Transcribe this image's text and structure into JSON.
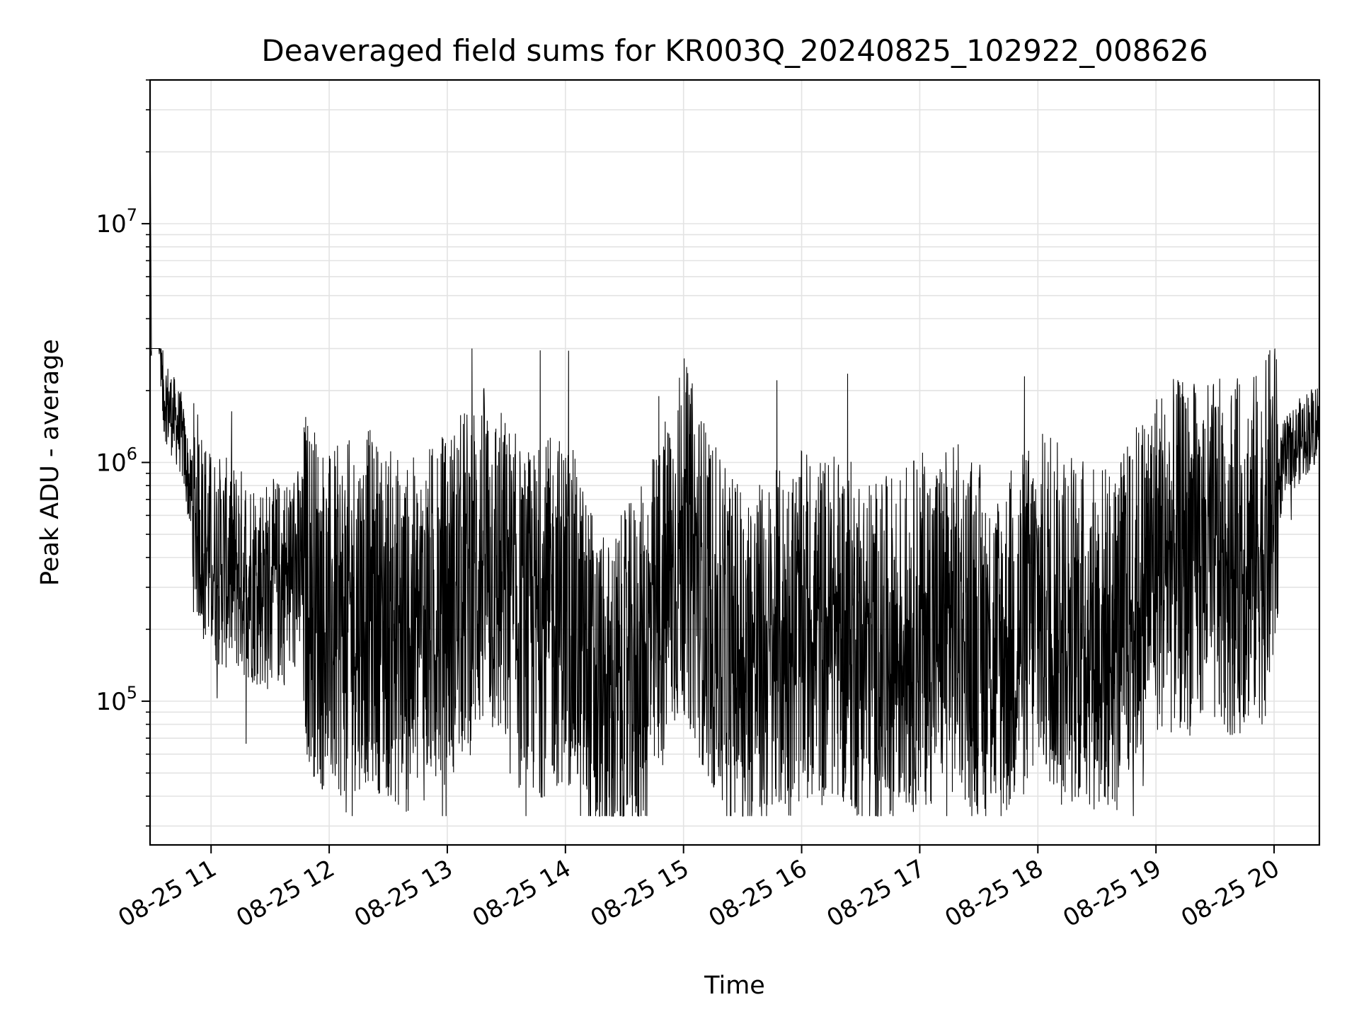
{
  "chart_data": {
    "type": "line",
    "title": "Deaveraged field sums for KR003Q_20240825_102922_008626",
    "xlabel": "Time",
    "ylabel": "Peak ADU - average",
    "yscale": "log",
    "ylim": [
      25000,
      40000000
    ],
    "xlim": [
      "2024-08-25 10:29",
      "2024-08-25 20:23"
    ],
    "grid": true,
    "x_tick_labels": [
      "08-25 11",
      "08-25 12",
      "08-25 13",
      "08-25 14",
      "08-25 15",
      "08-25 16",
      "08-25 17",
      "08-25 18",
      "08-25 19",
      "08-25 20"
    ],
    "x_tick_times": [
      "2024-08-25 11:00",
      "2024-08-25 12:00",
      "2024-08-25 13:00",
      "2024-08-25 14:00",
      "2024-08-25 15:00",
      "2024-08-25 16:00",
      "2024-08-25 17:00",
      "2024-08-25 18:00",
      "2024-08-25 19:00",
      "2024-08-25 20:00"
    ],
    "y_ticks": [
      {
        "value": 100000,
        "base": "10",
        "exp": "5"
      },
      {
        "value": 1000000,
        "base": "10",
        "exp": "6"
      },
      {
        "value": 10000000,
        "base": "10",
        "exp": "7"
      }
    ],
    "series_color": "#000000",
    "series": [
      {
        "x": [
          "2024-08-25 10:29",
          "2024-08-25 10:35",
          "2024-08-25 10:40",
          "2024-08-25 10:45",
          "2024-08-25 10:50",
          "2024-08-25 11:00",
          "2024-08-25 11:15",
          "2024-08-25 11:30",
          "2024-08-25 11:45",
          "2024-08-25 12:00",
          "2024-08-25 12:20",
          "2024-08-25 12:40",
          "2024-08-25 13:00",
          "2024-08-25 13:20",
          "2024-08-25 13:40",
          "2024-08-25 14:00",
          "2024-08-25 14:20",
          "2024-08-25 14:40",
          "2024-08-25 15:00",
          "2024-08-25 15:20",
          "2024-08-25 15:40",
          "2024-08-25 16:00",
          "2024-08-25 16:20",
          "2024-08-25 16:40",
          "2024-08-25 17:00",
          "2024-08-25 17:20",
          "2024-08-25 17:40",
          "2024-08-25 18:00",
          "2024-08-25 18:20",
          "2024-08-25 18:40",
          "2024-08-25 19:00",
          "2024-08-25 19:20",
          "2024-08-25 19:40",
          "2024-08-25 19:55",
          "2024-08-25 20:05",
          "2024-08-25 20:15",
          "2024-08-25 20:23"
        ],
        "y": [
          28000000,
          2000000,
          1600000,
          1300000,
          700000,
          400000,
          350000,
          300000,
          350000,
          200000,
          250000,
          180000,
          250000,
          400000,
          200000,
          250000,
          85000,
          150000,
          500000,
          170000,
          150000,
          200000,
          200000,
          150000,
          200000,
          220000,
          150000,
          250000,
          200000,
          180000,
          400000,
          400000,
          400000,
          450000,
          1000000,
          1300000,
          1500000
        ]
      }
    ]
  }
}
